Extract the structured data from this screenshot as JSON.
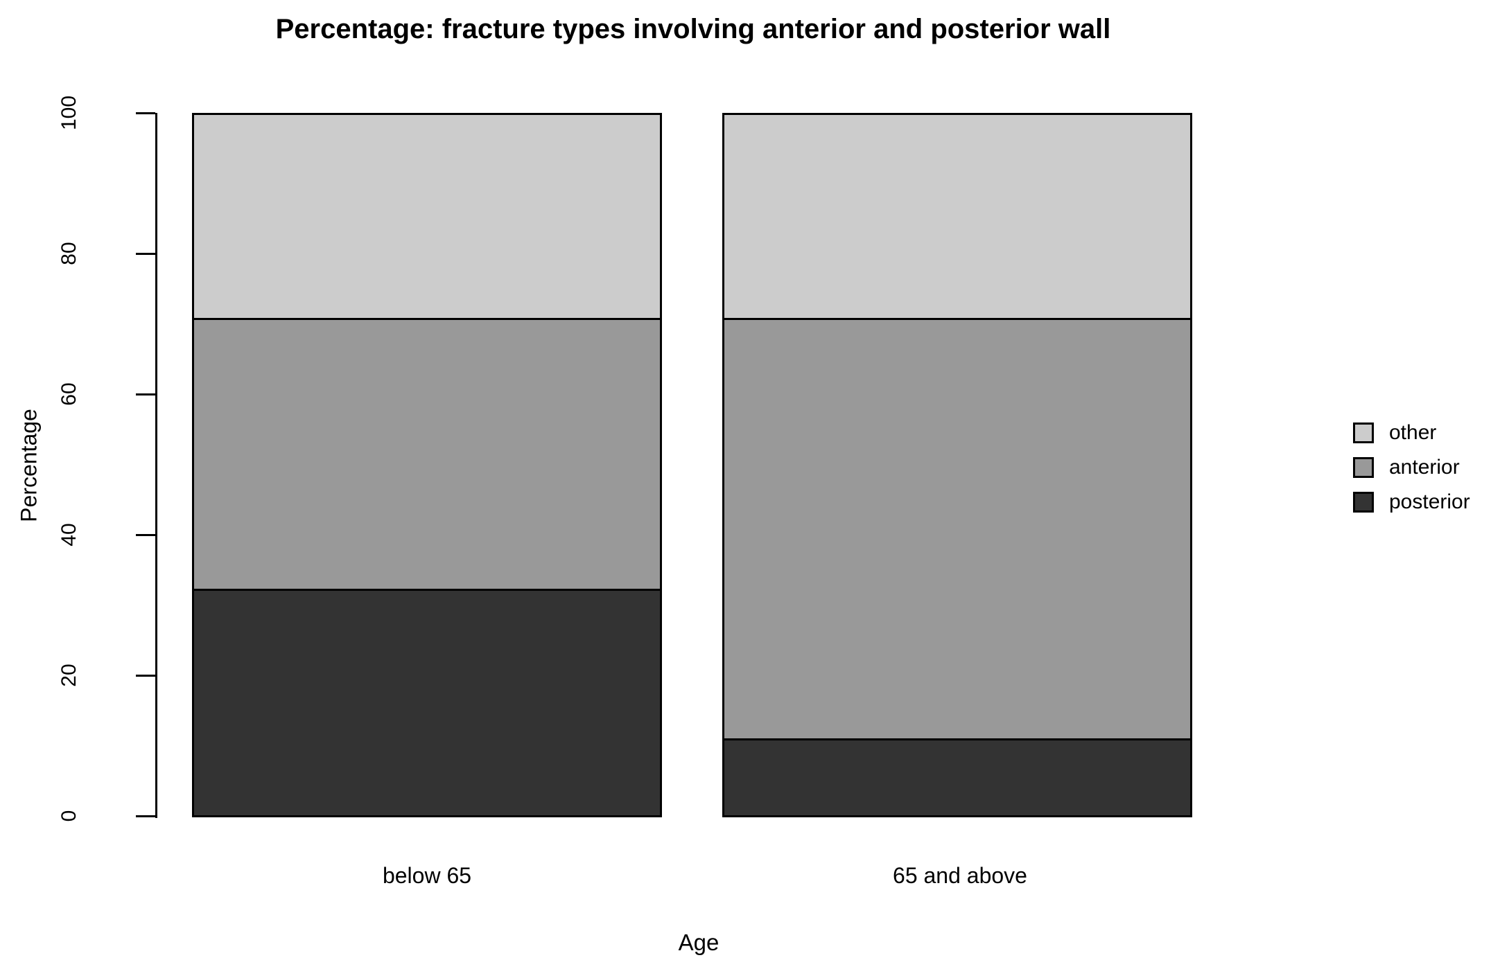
{
  "chart_data": {
    "type": "bar",
    "stacked": true,
    "title": "Percentage: fracture types involving anterior and posterior wall",
    "xlabel": "Age",
    "ylabel": "Percentage",
    "ylim": [
      0,
      100
    ],
    "yticks": [
      0,
      20,
      40,
      60,
      80,
      100
    ],
    "categories": [
      "below 65",
      "65 and above"
    ],
    "series": [
      {
        "name": "posterior",
        "color": "#333333",
        "values": [
          32.0,
          10.7
        ]
      },
      {
        "name": "anterior",
        "color": "#999999",
        "values": [
          38.5,
          59.8
        ]
      },
      {
        "name": "other",
        "color": "#cccccc",
        "values": [
          29.5,
          29.5
        ]
      }
    ],
    "legend": {
      "position": "right",
      "entries": [
        "other",
        "anterior",
        "posterior"
      ]
    },
    "grid": false,
    "background": "#ffffff"
  }
}
